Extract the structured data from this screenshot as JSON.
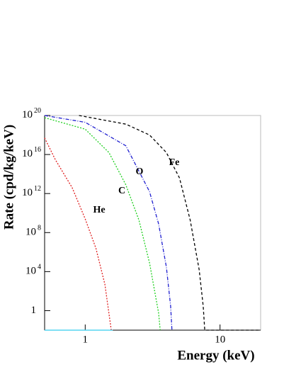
{
  "chart_data": {
    "type": "line",
    "x_label": "Energy (keV)",
    "y_label": "Rate (cpd/kg/keV)",
    "xscale": "log",
    "yscale": "log",
    "xlim": [
      0.5,
      20
    ],
    "ylim": [
      0.01,
      1e+20
    ],
    "xticks": [
      1,
      10
    ],
    "yticks": [
      1,
      {
        "value": 10000,
        "label": "10",
        "exponent": "4"
      },
      {
        "value": 100000000.0,
        "label": "10",
        "exponent": "8"
      },
      {
        "value": 1000000000000.0,
        "label": "10",
        "exponent": "12"
      },
      {
        "value": 1e+16,
        "label": "10",
        "exponent": "16"
      },
      {
        "value": 1e+20,
        "label": "10",
        "exponent": "20"
      }
    ],
    "series": [
      {
        "name": "He",
        "color": "#e02020",
        "dash": "2,2",
        "x": [
          0.5,
          0.6,
          0.8,
          1.0,
          1.2,
          1.4,
          1.56
        ],
        "values": [
          5e+17,
          3000000000000000.0,
          4000000000000.0,
          2500000000.0,
          2500000.0,
          500,
          0.01
        ]
      },
      {
        "name": "C",
        "color": "#20d020",
        "dash": "2,2",
        "x": [
          0.5,
          1.0,
          1.5,
          2.0,
          2.5,
          3.0,
          3.5,
          3.6
        ],
        "values": [
          6e+19,
          4e+18,
          1.6e+16,
          8000000000000.0,
          2000000000.0,
          80000,
          0.6,
          0.01
        ]
      },
      {
        "name": "O",
        "color": "#2020d0",
        "dash": "5,2,1,2",
        "x": [
          0.5,
          1.0,
          2.0,
          3.0,
          3.5,
          4.0,
          4.3,
          4.4
        ],
        "values": [
          1e+20,
          2e+19,
          8e+16,
          1600000000000.0,
          800000000.0,
          30000,
          3,
          0.01
        ]
      },
      {
        "name": "Fe",
        "color": "#000000",
        "dash": "4,3",
        "x": [
          0.9,
          2.0,
          3.0,
          4.0,
          5.0,
          6.0,
          7.0,
          7.5,
          7.7,
          20
        ],
        "values": [
          1e+20,
          1.3e+19,
          1e+18,
          1.6e+16,
          40000000000000.0,
          2000000000.0,
          16000,
          3,
          0.01,
          0.01
        ]
      },
      {
        "color": "#33ccee",
        "dash": "none",
        "x": [
          0.5,
          1.6
        ],
        "values": [
          0.01,
          0.01
        ]
      }
    ]
  }
}
